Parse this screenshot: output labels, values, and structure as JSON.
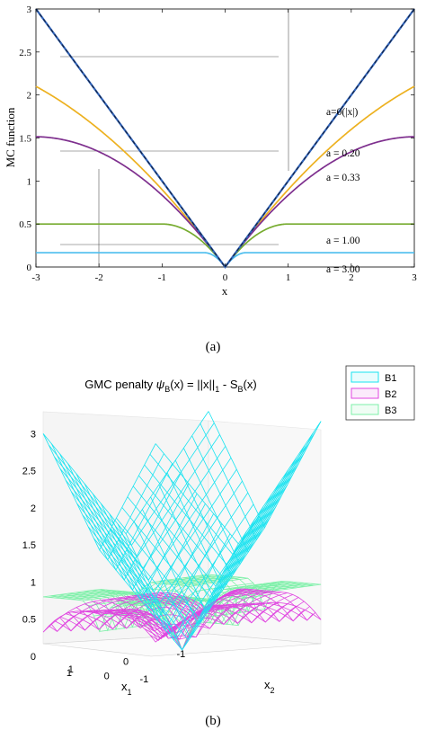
{
  "chart_data": [
    {
      "type": "line",
      "panel_label": "(a)",
      "xlabel": "x",
      "ylabel": "MC function",
      "xlim": [
        -3,
        3
      ],
      "ylim": [
        0,
        3
      ],
      "xticks": [
        -3,
        -2,
        -1,
        0,
        1,
        2,
        3
      ],
      "yticks": [
        "0",
        "0.5",
        "1",
        "1.5",
        "2",
        "2.5",
        "3"
      ],
      "grid": false,
      "function": "x <= 1/a ? |x| - a*x^2/2 : 1/(2a)",
      "series": [
        {
          "name": "a=0(|x|)",
          "a": 0,
          "color": "#1f3a8a",
          "dashed": true,
          "x": [
            -3,
            -2,
            -1,
            0,
            1,
            2,
            3
          ],
          "values": [
            3,
            2,
            1,
            0,
            1,
            2,
            3
          ]
        },
        {
          "name": "a = 0.20",
          "a": 0.2,
          "color": "#edb120",
          "x": [
            -3,
            -2,
            -1,
            0,
            1,
            2,
            3
          ],
          "values": [
            2.1,
            1.6,
            0.9,
            0,
            0.9,
            1.6,
            2.1
          ]
        },
        {
          "name": "a = 0.33",
          "a": 0.33,
          "color": "#7e2f8e",
          "x": [
            -3,
            -2,
            -1,
            0,
            1,
            2,
            3
          ],
          "values": [
            1.5,
            1.34,
            0.835,
            0,
            0.835,
            1.34,
            1.5
          ]
        },
        {
          "name": "a = 1.00",
          "a": 1.0,
          "color": "#77ac30",
          "x": [
            -3,
            -2,
            -1,
            0,
            1,
            2,
            3
          ],
          "values": [
            0.5,
            0.5,
            0.5,
            0,
            0.5,
            0.5,
            0.5
          ]
        },
        {
          "name": "a = 3.00",
          "a": 3.0,
          "color": "#4dbeee",
          "x": [
            -3,
            -2,
            -1,
            0,
            1,
            2,
            3
          ],
          "values": [
            0.167,
            0.167,
            0.167,
            0,
            0.167,
            0.167,
            0.167
          ]
        }
      ]
    },
    {
      "type": "surface3d",
      "panel_label": "(b)",
      "title_parts": [
        "GMC penalty ",
        "ψ",
        "B",
        "(x) = ||x||",
        "1",
        " - S",
        "B",
        "(x)"
      ],
      "xlabel_parts": [
        "x",
        "1"
      ],
      "ylabel_parts": [
        "x",
        "2"
      ],
      "zlim": [
        0,
        3
      ],
      "zticks": [
        "0",
        "0.5",
        "1",
        "1.5",
        "2",
        "2.5",
        "3"
      ],
      "x1_ticks": [
        "1",
        "0",
        "-1"
      ],
      "x2_ticks": [
        "1",
        "0",
        "-1"
      ],
      "legend_placement": "top-right",
      "legend": [
        {
          "name": "B1",
          "color": "#19e3f0"
        },
        {
          "name": "B2",
          "color": "#e045e0"
        },
        {
          "name": "B3",
          "color": "#7df0a8"
        }
      ]
    }
  ]
}
